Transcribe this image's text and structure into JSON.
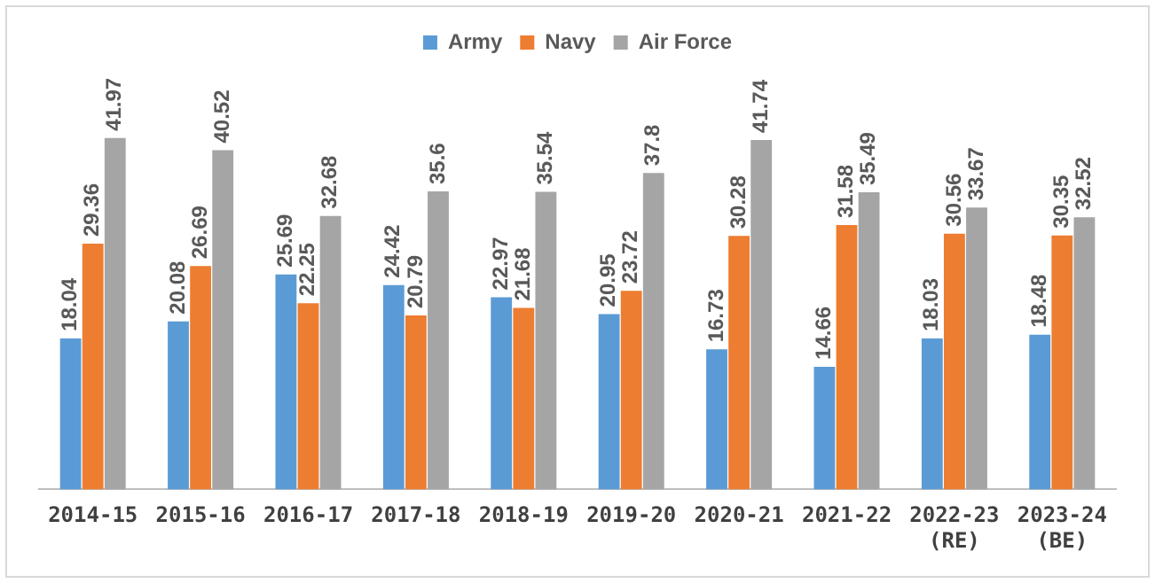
{
  "chart_data": {
    "type": "bar",
    "categories": [
      "2014-15",
      "2015-16",
      "2016-17",
      "2017-18",
      "2018-19",
      "2019-20",
      "2020-21",
      "2021-22",
      "2022-23 (RE)",
      "2023-24 (BE)"
    ],
    "series": [
      {
        "name": "Army",
        "color": "#5b9bd5",
        "values": [
          18.04,
          20.08,
          25.69,
          24.42,
          22.97,
          20.95,
          16.73,
          14.66,
          18.03,
          18.48
        ]
      },
      {
        "name": "Navy",
        "color": "#ed7d31",
        "values": [
          29.36,
          26.69,
          22.25,
          20.79,
          21.68,
          23.72,
          30.28,
          31.58,
          30.56,
          30.35
        ]
      },
      {
        "name": "Air Force",
        "color": "#a5a5a5",
        "values": [
          41.97,
          40.52,
          32.68,
          35.6,
          35.54,
          37.8,
          41.74,
          35.49,
          33.67,
          32.52
        ]
      }
    ],
    "data_labels": true,
    "legend": "top",
    "grid": false
  }
}
